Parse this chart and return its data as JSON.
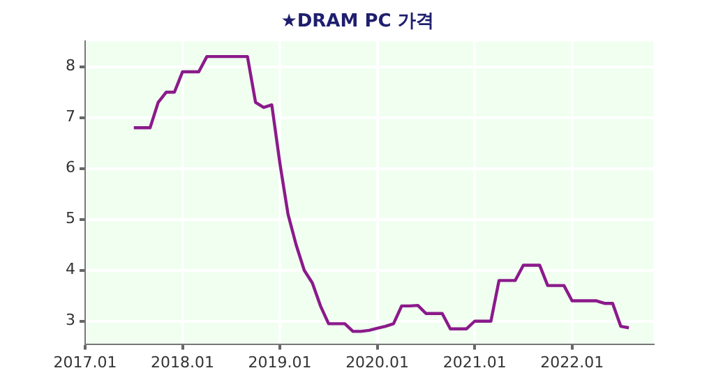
{
  "chart_data": {
    "type": "line",
    "title": "★DRAM PC 가격",
    "x": [
      "2017-07",
      "2017-08",
      "2017-09",
      "2017-10",
      "2017-11",
      "2017-12",
      "2018-01",
      "2018-02",
      "2018-03",
      "2018-04",
      "2018-05",
      "2018-06",
      "2018-07",
      "2018-08",
      "2018-09",
      "2018-10",
      "2018-11",
      "2018-12",
      "2019-01",
      "2019-02",
      "2019-03",
      "2019-04",
      "2019-05",
      "2019-06",
      "2019-07",
      "2019-08",
      "2019-09",
      "2019-10",
      "2019-11",
      "2019-12",
      "2020-01",
      "2020-02",
      "2020-03",
      "2020-04",
      "2020-05",
      "2020-06",
      "2020-07",
      "2020-08",
      "2020-09",
      "2020-10",
      "2020-11",
      "2020-12",
      "2021-01",
      "2021-02",
      "2021-03",
      "2021-04",
      "2021-05",
      "2021-06",
      "2021-07",
      "2021-08",
      "2021-09",
      "2021-10",
      "2021-11",
      "2021-12",
      "2022-01",
      "2022-02",
      "2022-03",
      "2022-04",
      "2022-05",
      "2022-06",
      "2022-07",
      "2022-08"
    ],
    "series": [
      {
        "color": "#8b1a8b",
        "values": [
          6.8,
          6.8,
          6.8,
          7.3,
          7.5,
          7.5,
          7.9,
          7.9,
          7.9,
          8.2,
          8.2,
          8.2,
          8.2,
          8.2,
          8.2,
          7.3,
          7.2,
          7.25,
          6.1,
          5.1,
          4.5,
          4.0,
          3.75,
          3.3,
          2.95,
          2.95,
          2.95,
          2.8,
          2.8,
          2.82,
          2.86,
          2.9,
          2.95,
          3.3,
          3.3,
          3.31,
          3.15,
          3.15,
          3.15,
          2.85,
          2.85,
          2.85,
          3.0,
          3.0,
          3.0,
          3.8,
          3.8,
          3.8,
          4.1,
          4.1,
          4.1,
          3.7,
          3.7,
          3.7,
          3.4,
          3.4,
          3.4,
          3.4,
          3.35,
          3.35,
          2.9,
          2.87
        ]
      }
    ],
    "xlim": [
      "2017-01",
      "2022-11"
    ],
    "xticks": [
      {
        "value": "2017-01",
        "label": "2017.01"
      },
      {
        "value": "2018-01",
        "label": "2018.01"
      },
      {
        "value": "2019-01",
        "label": "2019.01"
      },
      {
        "value": "2020-01",
        "label": "2020.01"
      },
      {
        "value": "2021-01",
        "label": "2021.01"
      },
      {
        "value": "2022-01",
        "label": "2022.01"
      }
    ],
    "ylim": [
      2.55,
      8.5
    ],
    "yticks": [
      3,
      4,
      5,
      6,
      7,
      8
    ],
    "grid": true,
    "legend": false,
    "marker": "none",
    "line_style": "solid"
  }
}
